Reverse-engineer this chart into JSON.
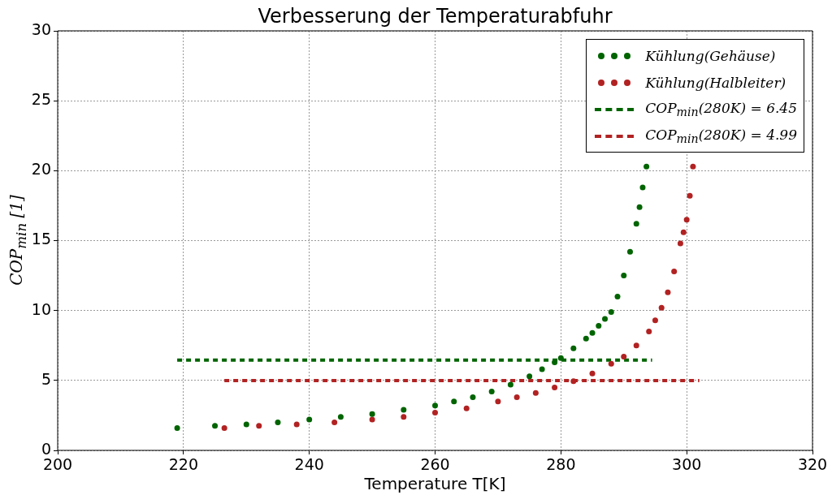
{
  "chart_data": {
    "type": "scatter",
    "title": "Verbesserung der Temperaturabfuhr",
    "xlabel": "Temperature T[K]",
    "ylabel": "COP$_{min}$ [1]",
    "xlim": [
      200,
      320
    ],
    "xticks": [
      200,
      220,
      240,
      260,
      280,
      300,
      320
    ],
    "ylim": [
      0,
      30
    ],
    "yticks": [
      0,
      5,
      10,
      15,
      20,
      25,
      30
    ],
    "grid": true,
    "legend": "top right",
    "series": [
      {
        "name": "Kühlung(Gehäuse)",
        "type": "scatter",
        "marker": "circle",
        "color": "#006400",
        "x": [
          219,
          225,
          230,
          235,
          240,
          245,
          250,
          255,
          260,
          263,
          266,
          269,
          272,
          275,
          277,
          279,
          280,
          282,
          284,
          285,
          286,
          287,
          288,
          289,
          290,
          291,
          292,
          292.5,
          293,
          293.6
        ],
        "values": [
          1.6,
          1.75,
          1.85,
          2.0,
          2.2,
          2.4,
          2.6,
          2.9,
          3.2,
          3.5,
          3.8,
          4.2,
          4.7,
          5.3,
          5.8,
          6.3,
          6.6,
          7.3,
          8.0,
          8.4,
          8.9,
          9.4,
          9.9,
          11.0,
          12.5,
          14.2,
          16.2,
          17.4,
          18.8,
          20.3
        ]
      },
      {
        "name": "Kühlung(Halbleiter)",
        "type": "scatter",
        "marker": "circle",
        "color": "#b22222",
        "x": [
          226.5,
          232,
          238,
          244,
          250,
          255,
          260,
          265,
          270,
          273,
          276,
          279,
          282,
          285,
          288,
          290,
          292,
          294,
          295,
          296,
          297,
          298,
          299,
          299.5,
          300,
          300.5,
          301
        ],
        "values": [
          1.6,
          1.75,
          1.85,
          2.0,
          2.2,
          2.4,
          2.7,
          3.0,
          3.5,
          3.8,
          4.1,
          4.5,
          4.95,
          5.5,
          6.2,
          6.7,
          7.5,
          8.5,
          9.3,
          10.2,
          11.3,
          12.8,
          14.8,
          15.6,
          16.5,
          18.2,
          20.3
        ]
      },
      {
        "name": "COP$_{min}$(280K) = 6.45",
        "type": "line",
        "marker": "none",
        "line_style": "dashed",
        "color": "#006400",
        "x": [
          219,
          294.5
        ],
        "values": [
          6.45,
          6.45
        ]
      },
      {
        "name": "COP$_{min}$(280K) = 4.99",
        "type": "line",
        "marker": "none",
        "line_style": "dashed",
        "color": "#b22222",
        "x": [
          226.5,
          302
        ],
        "values": [
          4.99,
          4.99
        ]
      }
    ]
  }
}
